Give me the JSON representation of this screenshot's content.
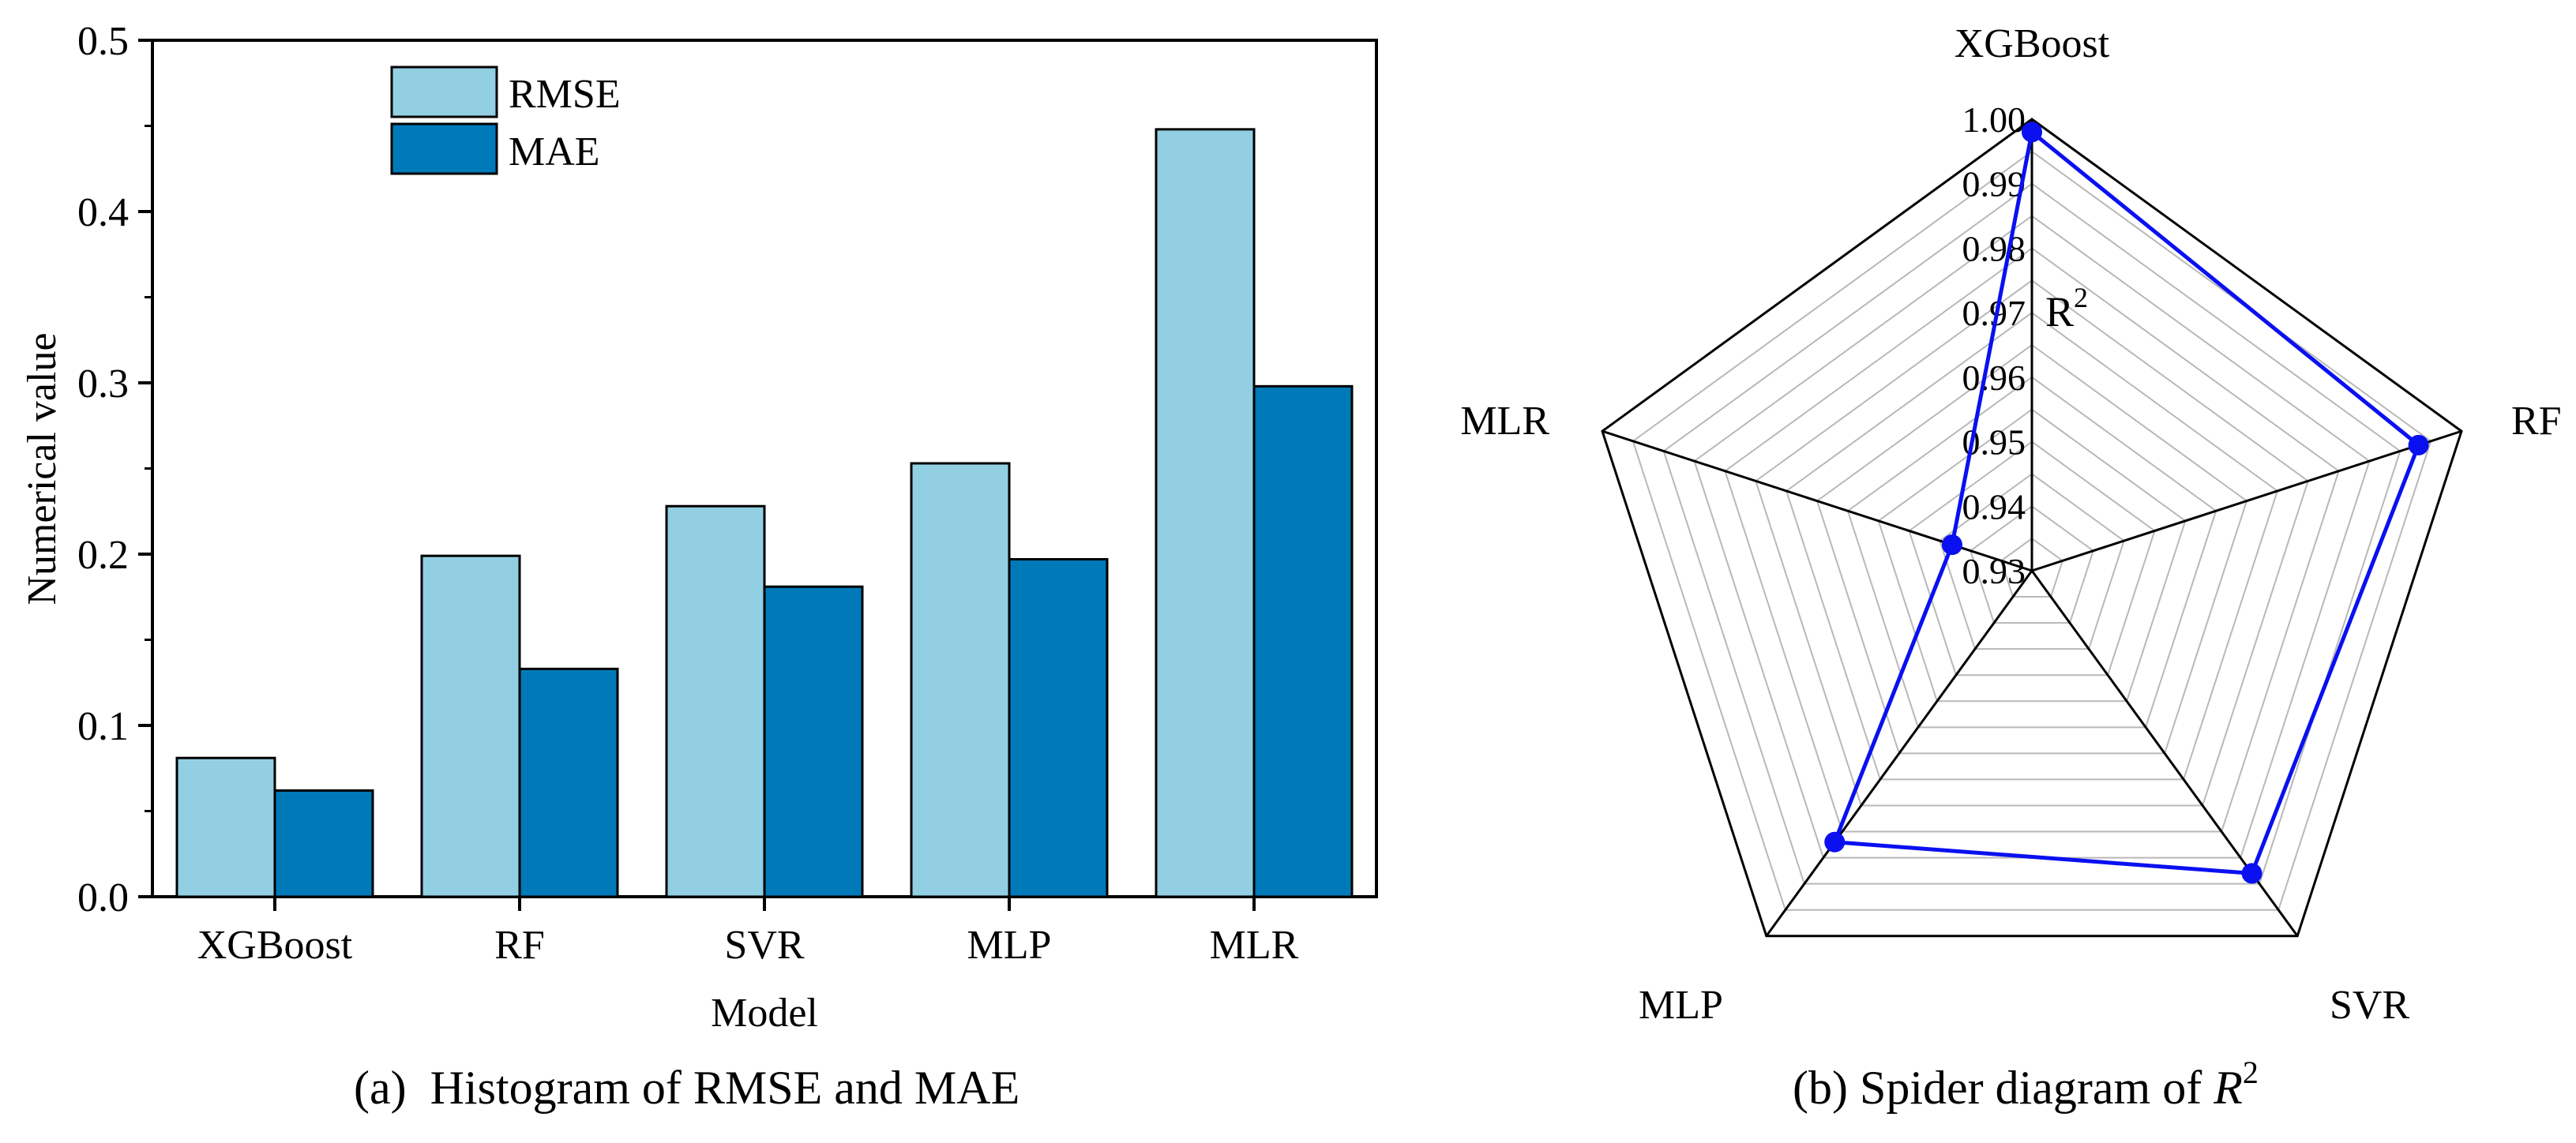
{
  "chart_data": [
    {
      "type": "bar",
      "title": "(a)  Histogram of RMSE and MAE",
      "xlabel": "Model",
      "ylabel": "Numerical value",
      "categories": [
        "XGBoost",
        "RF",
        "SVR",
        "MLP",
        "MLR"
      ],
      "series": [
        {
          "name": "RMSE",
          "color": "#92cfe3",
          "values": [
            0.081,
            0.199,
            0.228,
            0.253,
            0.448
          ]
        },
        {
          "name": "MAE",
          "color": "#0079b8",
          "values": [
            0.062,
            0.133,
            0.181,
            0.197,
            0.298
          ]
        }
      ],
      "ylim": [
        0,
        0.5
      ],
      "yticks": [
        0.0,
        0.1,
        0.2,
        0.3,
        0.4,
        0.5
      ],
      "ytick_labels": [
        "0.0",
        "0.1",
        "0.2",
        "0.3",
        "0.4",
        "0.5"
      ],
      "grid": false,
      "legend": "top-center"
    },
    {
      "type": "radar",
      "title_text": "(b) Spider diagram of ",
      "title_math": "R",
      "title_sup": "2",
      "axis_label": "R",
      "axis_label_sup": "2",
      "categories": [
        "XGBoost",
        "RF",
        "SVR",
        "MLP",
        "MLR"
      ],
      "series": [
        {
          "name": "R2",
          "color": "#0a10f0",
          "values": [
            0.998,
            0.993,
            0.988,
            0.982,
            0.943
          ]
        }
      ],
      "rlim": [
        0.93,
        1.0
      ],
      "rticks": [
        0.93,
        0.94,
        0.95,
        0.96,
        0.97,
        0.98,
        0.99,
        1.0
      ],
      "rtick_labels": [
        "0.93",
        "0.94",
        "0.95",
        "0.96",
        "0.97",
        "0.98",
        "0.99",
        "1.00"
      ]
    }
  ]
}
